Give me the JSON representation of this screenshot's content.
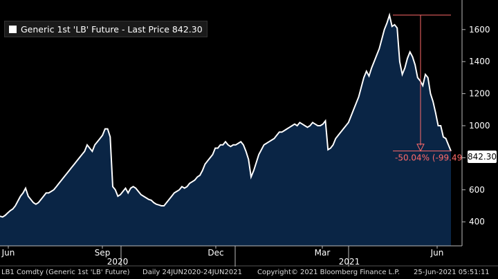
{
  "legend": {
    "label": "Generic 1st 'LB' Future - Last Price 842.30"
  },
  "last_price": "842.30",
  "drawdown_label": "-50.04% (-99.49",
  "footer": {
    "ticker": "LB1 Comdty (Generic 1st 'LB' Future)",
    "range": "Daily 24JUN2020-24JUN2021",
    "copyright": "Copyright© 2021 Bloomberg Finance L.P.",
    "timestamp": "25-Jun-2021 05:51:11"
  },
  "colors": {
    "background": "#000000",
    "area_fill": "#0a2545",
    "line": "#ffffff",
    "annotation": "#ff6a6a"
  },
  "chart_data": {
    "type": "area",
    "title": "Generic 1st 'LB' Future - Last Price 842.30",
    "xlabel": "",
    "ylabel": "",
    "ylim": [
      250,
      1750
    ],
    "y_ticks": [
      400,
      600,
      800,
      1000,
      1200,
      1400,
      1600
    ],
    "x_tick_labels": [
      "Jun",
      "Sep",
      "Dec",
      "Mar",
      "Jun"
    ],
    "year_labels": [
      "2020",
      "2021"
    ],
    "series": [
      {
        "name": "Last Price",
        "values": [
          435,
          430,
          440,
          455,
          470,
          480,
          500,
          530,
          560,
          580,
          610,
          560,
          540,
          520,
          510,
          520,
          540,
          560,
          580,
          580,
          590,
          600,
          620,
          640,
          660,
          680,
          700,
          720,
          740,
          760,
          780,
          800,
          820,
          840,
          880,
          860,
          840,
          880,
          900,
          920,
          940,
          980,
          980,
          930,
          620,
          600,
          560,
          570,
          590,
          610,
          580,
          610,
          620,
          610,
          590,
          570,
          560,
          550,
          540,
          535,
          520,
          510,
          505,
          500,
          500,
          520,
          540,
          560,
          580,
          590,
          600,
          620,
          610,
          620,
          640,
          650,
          660,
          680,
          690,
          720,
          760,
          780,
          800,
          820,
          860,
          860,
          880,
          880,
          900,
          880,
          870,
          880,
          880,
          890,
          900,
          880,
          840,
          790,
          680,
          720,
          770,
          820,
          850,
          880,
          890,
          900,
          910,
          920,
          940,
          960,
          960,
          970,
          980,
          990,
          1000,
          1010,
          1000,
          1020,
          1010,
          1000,
          990,
          1000,
          1020,
          1010,
          1000,
          1000,
          1010,
          1030,
          850,
          860,
          880,
          920,
          940,
          960,
          980,
          1000,
          1020,
          1060,
          1100,
          1140,
          1180,
          1240,
          1300,
          1340,
          1310,
          1360,
          1400,
          1440,
          1480,
          1540,
          1600,
          1640,
          1690,
          1620,
          1630,
          1610,
          1400,
          1320,
          1360,
          1420,
          1460,
          1430,
          1380,
          1300,
          1280,
          1250,
          1320,
          1300,
          1200,
          1150,
          1080,
          1000,
          1000,
          930,
          920,
          880,
          842
        ]
      }
    ],
    "annotations": [
      {
        "type": "drawdown",
        "from_value": 1690,
        "to_value": 842.3,
        "label": "-50.04% (-99.49"
      }
    ]
  }
}
